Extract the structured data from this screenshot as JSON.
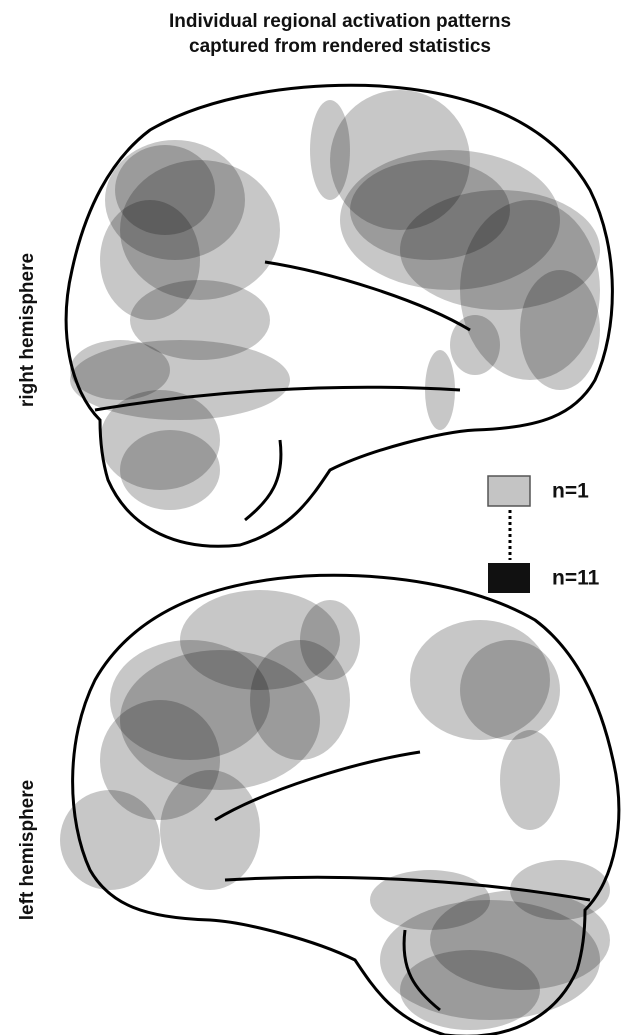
{
  "title": [
    "Individual regional activation patterns",
    "captured from rendered statistics"
  ],
  "panels": [
    {
      "label": "right hemisphere"
    },
    {
      "label": "left hemisphere"
    }
  ],
  "legend": {
    "low": "n=1",
    "high": "n=11"
  }
}
